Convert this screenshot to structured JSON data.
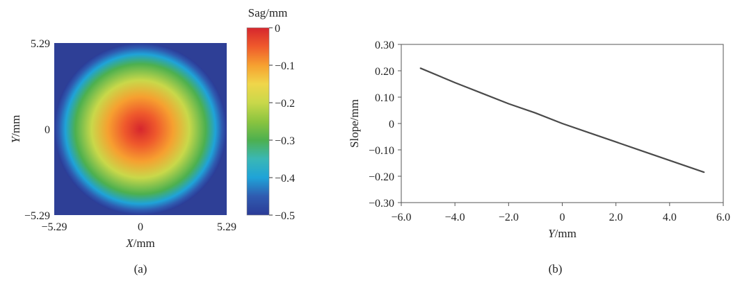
{
  "panel_a": {
    "sublabel": "(a)",
    "xlabel": "X/mm",
    "ylabel": "Y/mm",
    "colorbar_title": "Sag/mm",
    "x_ticks": [
      "−5.29",
      "0",
      "5.29"
    ],
    "y_ticks": [
      "5.29",
      "0",
      "−5.29"
    ],
    "colorbar_ticks": [
      "0",
      "−0.1",
      "−0.2",
      "−0.3",
      "−0.4",
      "−0.5"
    ],
    "colors": {
      "background": "#2e3f96",
      "colormap": [
        "#2b3b97",
        "#2f5bb0",
        "#1fa3d8",
        "#3ab7b5",
        "#4db04f",
        "#8bc43f",
        "#c9d84a",
        "#f0d64a",
        "#f6a030",
        "#ef5a2c",
        "#d6262d"
      ]
    }
  },
  "panel_b": {
    "sublabel": "(b)",
    "xlabel": "Y/mm",
    "ylabel": "Slope/mm",
    "x_ticks": [
      "−6.0",
      "−4.0",
      "−2.0",
      "0",
      "2.0",
      "4.0",
      "6.0"
    ],
    "y_ticks": [
      "0.30",
      "0.20",
      "0.10",
      "0",
      "−0.10",
      "−0.20",
      "−0.30"
    ],
    "colors": {
      "line": "#4a4a4a",
      "axes": "#555555"
    }
  },
  "chart_data": [
    {
      "type": "heatmap",
      "title": "",
      "xlabel": "X/mm",
      "ylabel": "Y/mm",
      "xlim": [
        -5.29,
        5.29
      ],
      "ylim": [
        -5.29,
        5.29
      ],
      "colorbar": {
        "label": "Sag/mm",
        "range": [
          -0.5,
          0
        ]
      },
      "surface": "rotationally symmetric sag, 0 at center decreasing to -0.5 at radius 5.29",
      "radial_profile": {
        "r": [
          0,
          1.0,
          2.0,
          3.0,
          4.0,
          4.6,
          5.0,
          5.29
        ],
        "sag": [
          0,
          -0.03,
          -0.09,
          -0.19,
          -0.32,
          -0.4,
          -0.46,
          -0.5
        ]
      }
    },
    {
      "type": "line",
      "title": "",
      "xlabel": "Y/mm",
      "ylabel": "Slope/mm",
      "xlim": [
        -6.0,
        6.0
      ],
      "ylim": [
        -0.3,
        0.3
      ],
      "grid": false,
      "series": [
        {
          "x": [
            -5.29,
            -4.0,
            -3.0,
            -2.0,
            -1.0,
            0,
            1.0,
            2.0,
            3.0,
            4.0,
            5.29
          ],
          "y": [
            0.21,
            0.155,
            0.115,
            0.075,
            0.04,
            0.0,
            -0.035,
            -0.07,
            -0.105,
            -0.14,
            -0.185
          ]
        }
      ]
    }
  ]
}
